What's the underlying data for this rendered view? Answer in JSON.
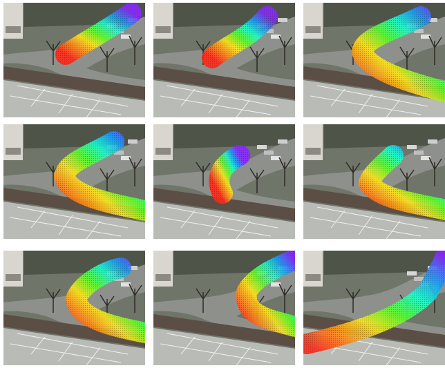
{
  "grid": {
    "rows": 3,
    "columns": 3,
    "panels": [
      {
        "scene": "parking-lot-surveillance",
        "overlay": "rainbow-trajectory",
        "stage": 1
      },
      {
        "scene": "parking-lot-surveillance",
        "overlay": "rainbow-trajectory",
        "stage": 2
      },
      {
        "scene": "parking-lot-surveillance",
        "overlay": "rainbow-trajectory",
        "stage": 3
      },
      {
        "scene": "parking-lot-surveillance",
        "overlay": "rainbow-trajectory",
        "stage": 4
      },
      {
        "scene": "parking-lot-surveillance",
        "overlay": "rainbow-trajectory",
        "stage": 5
      },
      {
        "scene": "parking-lot-surveillance",
        "overlay": "rainbow-trajectory",
        "stage": 6
      },
      {
        "scene": "parking-lot-surveillance",
        "overlay": "rainbow-trajectory",
        "stage": 7
      },
      {
        "scene": "parking-lot-surveillance",
        "overlay": "rainbow-trajectory",
        "stage": 8
      },
      {
        "scene": "parking-lot-surveillance",
        "overlay": "rainbow-trajectory",
        "stage": 9
      }
    ]
  },
  "colors": {
    "road": "#8e918b",
    "lawn": "#6f7569",
    "hedge": "#5b4e45",
    "building": "#d9d6cf",
    "parking": "#b9bcb6",
    "rainbow": [
      "#ff2a1a",
      "#ff8c1a",
      "#ffe81a",
      "#5cff2a",
      "#1affd0",
      "#1a9cff",
      "#8a2aff"
    ]
  }
}
